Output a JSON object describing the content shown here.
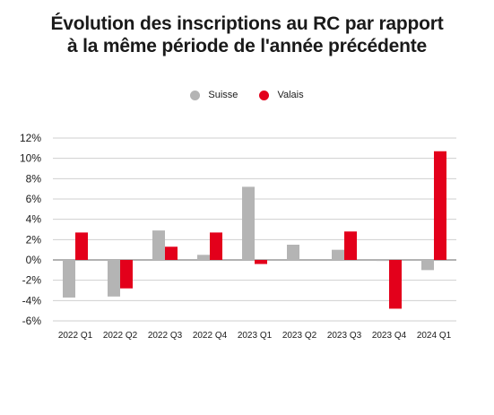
{
  "chart_data": {
    "type": "bar",
    "title_lines": [
      "Évolution des inscriptions au RC par rapport",
      "à la même période de l'année précédente"
    ],
    "categories": [
      "2022 Q1",
      "2022 Q2",
      "2022 Q3",
      "2022 Q4",
      "2023 Q1",
      "2023 Q2",
      "2023 Q3",
      "2023 Q4",
      "2024 Q1"
    ],
    "series": [
      {
        "name": "Suisse",
        "color": "#b4b4b4",
        "values": [
          -3.7,
          -3.6,
          2.9,
          0.5,
          7.2,
          1.5,
          1.0,
          -0.1,
          -1.0
        ]
      },
      {
        "name": "Valais",
        "color": "#e3001b",
        "values": [
          2.7,
          -2.8,
          1.3,
          2.7,
          -0.4,
          0.0,
          2.8,
          -4.8,
          10.7
        ]
      }
    ],
    "yticks": [
      -6,
      -4,
      -2,
      0,
      2,
      4,
      6,
      8,
      10,
      12
    ],
    "ytick_labels": [
      "-6%",
      "-4%",
      "-2%",
      "0%",
      "2%",
      "4%",
      "6%",
      "8%",
      "10%",
      "12%"
    ],
    "ylim": [
      -6,
      12
    ],
    "grid": true,
    "legend_position": "top-center"
  }
}
